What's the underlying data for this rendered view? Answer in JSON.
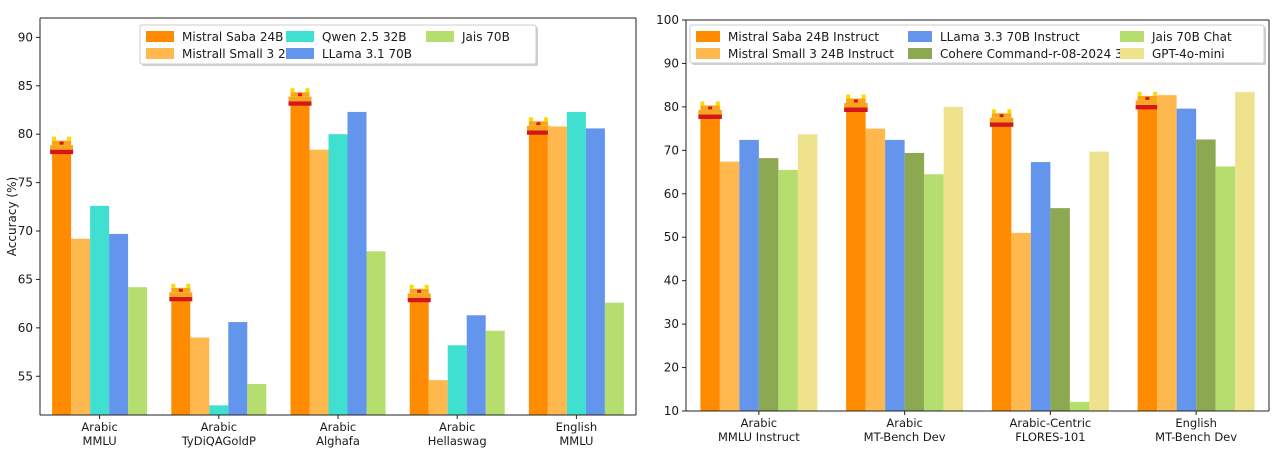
{
  "colors": {
    "axis": "#222222",
    "logo_orange": "#F7A61C",
    "logo_red": "#D4161A",
    "logo_yellow": "#FFD800"
  },
  "chart_data": [
    {
      "type": "bar",
      "title": "",
      "xlabel": "",
      "ylabel": "Accuracy (%)",
      "ylim": [
        51,
        92
      ],
      "yticks": [
        55,
        60,
        65,
        70,
        75,
        80,
        85,
        90
      ],
      "grid": false,
      "legend_placement": "top-center",
      "legend_columns": 3,
      "logo_on_series": 0,
      "categories": [
        [
          "Arabic",
          "MMLU"
        ],
        [
          "Arabic",
          "TyDiQAGoldP"
        ],
        [
          "Arabic",
          "Alghafa"
        ],
        [
          "Arabic",
          "Hellaswag"
        ],
        [
          "English",
          "MMLU"
        ]
      ],
      "series": [
        {
          "name": "Mistral Saba 24B",
          "color": "#FF8C00",
          "values": [
            78.2,
            63.0,
            83.2,
            62.9,
            80.2
          ]
        },
        {
          "name": "Mistrall Small 3 24B",
          "color": "#FFB84D",
          "values": [
            69.2,
            59.0,
            78.4,
            54.6,
            80.8
          ]
        },
        {
          "name": "Qwen 2.5 32B",
          "color": "#40E0D0",
          "values": [
            72.6,
            52.0,
            80.0,
            58.2,
            82.3
          ]
        },
        {
          "name": "LLama 3.1 70B",
          "color": "#6495ED",
          "values": [
            69.7,
            60.6,
            82.3,
            61.3,
            80.6
          ]
        },
        {
          "name": "Jais 70B",
          "color": "#B5DE6E",
          "values": [
            64.2,
            54.2,
            67.9,
            59.7,
            62.6
          ]
        }
      ]
    },
    {
      "type": "bar",
      "title": "",
      "xlabel": "",
      "ylabel": "",
      "ylim": [
        10,
        100
      ],
      "yticks": [
        10,
        20,
        30,
        40,
        50,
        60,
        70,
        80,
        90,
        100
      ],
      "grid": false,
      "legend_placement": "top-center",
      "legend_columns": 3,
      "logo_on_series": 0,
      "categories": [
        [
          "Arabic",
          "MMLU Instruct"
        ],
        [
          "Arabic",
          "MT-Bench Dev"
        ],
        [
          "Arabic-Centric",
          "FLORES-101"
        ],
        [
          "English",
          "MT-Bench Dev"
        ]
      ],
      "series": [
        {
          "name": "Mistral Saba 24B Instruct",
          "color": "#FF8C00",
          "values": [
            77.8,
            79.4,
            76.0,
            80.0
          ]
        },
        {
          "name": "Mistral Small 3 24B Instruct",
          "color": "#FFB84D",
          "values": [
            67.4,
            75.0,
            51.0,
            82.7
          ]
        },
        {
          "name": "LLama 3.3 70B Instruct",
          "color": "#6495ED",
          "values": [
            72.4,
            72.4,
            67.3,
            79.6
          ]
        },
        {
          "name": "Cohere Command-r-08-2024 32B",
          "color": "#8CA851",
          "values": [
            68.2,
            69.4,
            56.7,
            72.5
          ]
        },
        {
          "name": "Jais 70B Chat",
          "color": "#B5DE6E",
          "values": [
            65.5,
            64.5,
            12.1,
            66.3
          ]
        },
        {
          "name": "GPT-4o-mini",
          "color": "#EEE38C",
          "values": [
            73.7,
            80.0,
            69.7,
            83.4
          ]
        }
      ]
    }
  ]
}
